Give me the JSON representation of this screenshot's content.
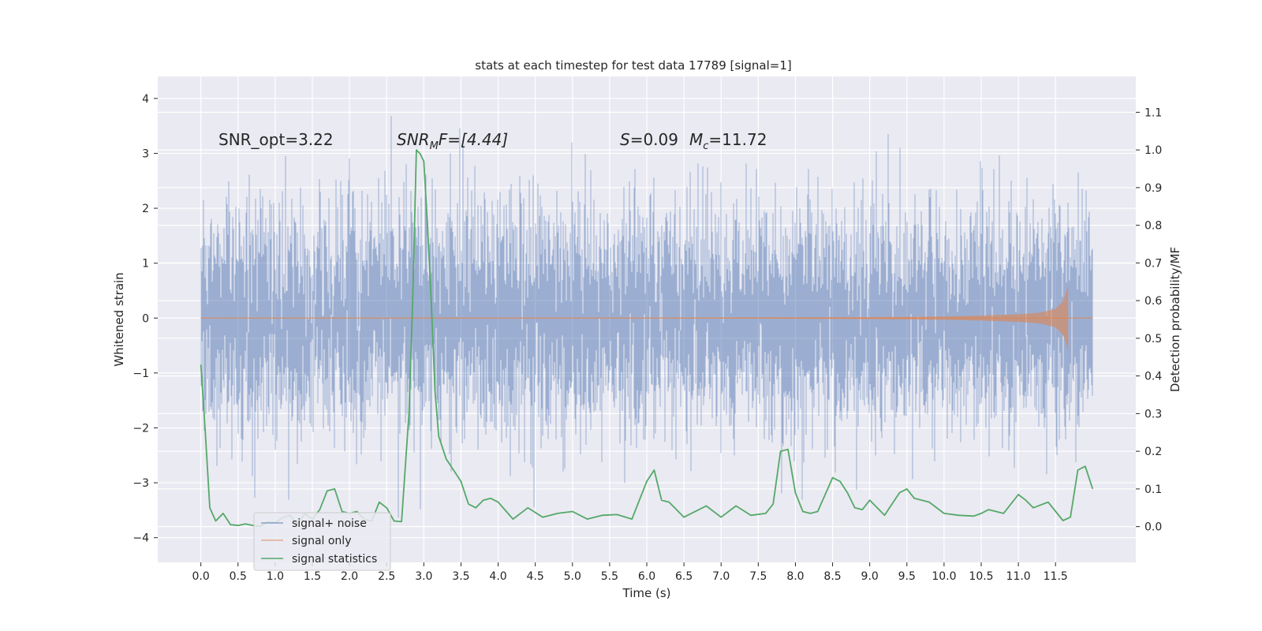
{
  "chart_data": {
    "type": "line",
    "title": "stats at each timestep for test data 17789 [signal=1]",
    "xlabel": "Time (s)",
    "ylabel": "Whitened strain",
    "y2label": "Detection probability/MF",
    "xlim": [
      -0.58,
      12.58
    ],
    "ylim": [
      -4.45,
      4.4
    ],
    "y2lim": [
      -0.095,
      1.195
    ],
    "x_ticks": [
      0.0,
      0.5,
      1.0,
      1.5,
      2.0,
      2.5,
      3.0,
      3.5,
      4.0,
      4.5,
      5.0,
      5.5,
      6.0,
      6.5,
      7.0,
      7.5,
      8.0,
      8.5,
      9.0,
      9.5,
      10.0,
      10.5,
      11.0,
      11.5
    ],
    "x_tick_labels": [
      "0.0",
      "0.5",
      "1.0",
      "1.5",
      "2.0",
      "2.5",
      "3.0",
      "3.5",
      "4.0",
      "4.5",
      "5.0",
      "5.5",
      "6.0",
      "6.5",
      "7.0",
      "7.5",
      "8.0",
      "8.5",
      "9.0",
      "9.5",
      "10.0",
      "10.5",
      "11.0",
      "11.5"
    ],
    "y_ticks": [
      4,
      3,
      2,
      1,
      0,
      -1,
      -2,
      -3,
      -4
    ],
    "y_tick_labels": [
      "4",
      "3",
      "2",
      "1",
      "0",
      "−1",
      "−2",
      "−3",
      "−4"
    ],
    "y2_ticks": [
      1.1,
      1.0,
      0.9,
      0.8,
      0.7,
      0.6,
      0.5,
      0.4,
      0.3,
      0.2,
      0.1,
      0.0
    ],
    "y2_tick_labels": [
      "1.1",
      "1.0",
      "0.9",
      "0.8",
      "0.7",
      "0.6",
      "0.5",
      "0.4",
      "0.3",
      "0.2",
      "0.1",
      "0.0"
    ],
    "grid": true,
    "legend_position": "lower-left",
    "annotations": {
      "snr_opt": "SNR_opt=3.22",
      "snr_mf_prefix": "SNR",
      "snr_mf_sub": "M",
      "snr_mf_suffix": "F=[4.44]",
      "s_var": "S",
      "s_val": "=0.09",
      "mc_var": "M",
      "mc_sub": "c",
      "mc_val": "=11.72"
    },
    "series": [
      {
        "name": "signal+ noise",
        "axis": "left",
        "color": "#4c72b0",
        "opacity": 0.5,
        "noise_std": 1.0,
        "duration_s": 12.0,
        "range": [
          -4.05,
          4.05
        ]
      },
      {
        "name": "signal only",
        "axis": "left",
        "color": "#dd8452",
        "opacity": 0.6,
        "envelope": {
          "t": [
            0.0,
            6.0,
            8.0,
            9.0,
            10.0,
            10.5,
            11.0,
            11.3,
            11.5,
            11.6,
            11.65,
            11.67
          ],
          "amp": [
            0.004,
            0.008,
            0.012,
            0.018,
            0.03,
            0.045,
            0.07,
            0.1,
            0.17,
            0.3,
            0.5,
            0.6
          ]
        },
        "merger_time": 11.67
      },
      {
        "name": "signal statistics",
        "axis": "right",
        "color": "#55a868",
        "x": [
          0.0,
          0.06,
          0.12,
          0.2,
          0.3,
          0.4,
          0.5,
          0.6,
          0.7,
          0.8,
          0.9,
          1.0,
          1.1,
          1.2,
          1.3,
          1.4,
          1.5,
          1.6,
          1.7,
          1.8,
          1.9,
          2.0,
          2.1,
          2.2,
          2.3,
          2.4,
          2.5,
          2.6,
          2.7,
          2.8,
          2.85,
          2.9,
          2.95,
          3.0,
          3.05,
          3.1,
          3.15,
          3.2,
          3.3,
          3.4,
          3.5,
          3.6,
          3.7,
          3.8,
          3.9,
          4.0,
          4.2,
          4.4,
          4.6,
          4.8,
          5.0,
          5.2,
          5.4,
          5.6,
          5.8,
          6.0,
          6.1,
          6.2,
          6.3,
          6.5,
          6.6,
          6.8,
          7.0,
          7.2,
          7.4,
          7.6,
          7.7,
          7.8,
          7.9,
          8.0,
          8.1,
          8.2,
          8.3,
          8.5,
          8.6,
          8.7,
          8.8,
          8.9,
          9.0,
          9.2,
          9.4,
          9.5,
          9.6,
          9.8,
          10.0,
          10.2,
          10.4,
          10.5,
          10.6,
          10.8,
          11.0,
          11.1,
          11.2,
          11.4,
          11.6,
          11.7,
          11.8,
          11.9,
          12.0
        ],
        "values": [
          0.43,
          0.25,
          0.05,
          0.015,
          0.035,
          0.005,
          0.003,
          0.007,
          0.003,
          0.001,
          0.012,
          0.01,
          0.024,
          0.03,
          0.007,
          0.034,
          0.02,
          0.045,
          0.095,
          0.1,
          0.04,
          0.035,
          0.04,
          0.018,
          0.015,
          0.065,
          0.05,
          0.015,
          0.013,
          0.3,
          0.6,
          1.0,
          0.99,
          0.97,
          0.8,
          0.6,
          0.36,
          0.24,
          0.18,
          0.15,
          0.12,
          0.06,
          0.05,
          0.07,
          0.075,
          0.065,
          0.02,
          0.05,
          0.025,
          0.035,
          0.04,
          0.02,
          0.03,
          0.032,
          0.02,
          0.12,
          0.15,
          0.07,
          0.065,
          0.025,
          0.035,
          0.055,
          0.025,
          0.055,
          0.03,
          0.035,
          0.06,
          0.2,
          0.205,
          0.09,
          0.04,
          0.035,
          0.04,
          0.13,
          0.12,
          0.09,
          0.05,
          0.045,
          0.07,
          0.03,
          0.09,
          0.1,
          0.075,
          0.065,
          0.035,
          0.03,
          0.028,
          0.035,
          0.045,
          0.035,
          0.085,
          0.07,
          0.05,
          0.065,
          0.016,
          0.025,
          0.15,
          0.16,
          0.1
        ]
      }
    ]
  }
}
